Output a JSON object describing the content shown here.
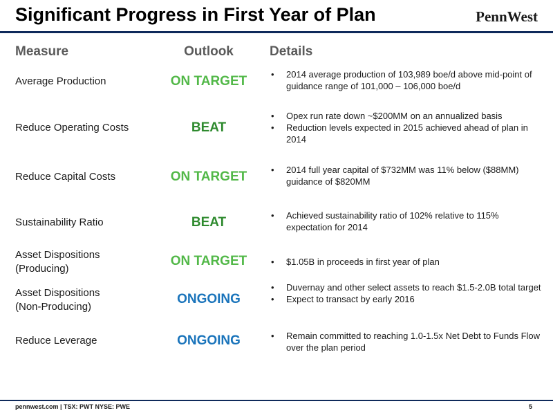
{
  "title": "Significant Progress in First Year of Plan",
  "logo_text": "PennWest",
  "headers": {
    "measure": "Measure",
    "outlook": "Outlook",
    "details": "Details"
  },
  "colors": {
    "on_target": "#52b848",
    "beat": "#2e8a2e",
    "ongoing": "#1a74bb",
    "brand": "#0f2a5b"
  },
  "rows": [
    {
      "measure": "Average Production",
      "outlook": "ON TARGET",
      "details": [
        "2014 average production of 103,989 boe/d above mid-point of guidance range of 101,000 – 106,000 boe/d"
      ]
    },
    {
      "measure": "Reduce Operating Costs",
      "outlook": "BEAT",
      "details": [
        "Opex run rate down ~$200MM on an annualized basis",
        "Reduction levels expected in 2015 achieved ahead of plan in 2014"
      ]
    },
    {
      "measure": "Reduce Capital Costs",
      "outlook": "ON TARGET",
      "details": [
        "2014 full year capital of $732MM was 11% below ($88MM) guidance of $820MM"
      ]
    },
    {
      "measure": "Sustainability Ratio",
      "outlook": "BEAT",
      "details": [
        "Achieved sustainability ratio of 102% relative to 115% expectation for 2014"
      ]
    },
    {
      "measure": "Asset Dispositions (Producing)",
      "outlook": "ON TARGET",
      "details": [
        "$1.05B in proceeds in first year of plan"
      ]
    },
    {
      "measure": "Asset Dispositions (Non-Producing)",
      "outlook": "ONGOING",
      "details": [
        "Duvernay and other select assets to reach $1.5-2.0B total target",
        "Expect to transact by early 2016"
      ]
    },
    {
      "measure": "Reduce Leverage",
      "outlook": "ONGOING",
      "details": [
        "Remain committed to reaching 1.0-1.5x Net Debt to Funds Flow over the plan period"
      ]
    }
  ],
  "footer": {
    "left": "pennwest.com | TSX: PWT  NYSE: PWE",
    "page_number": "5"
  }
}
